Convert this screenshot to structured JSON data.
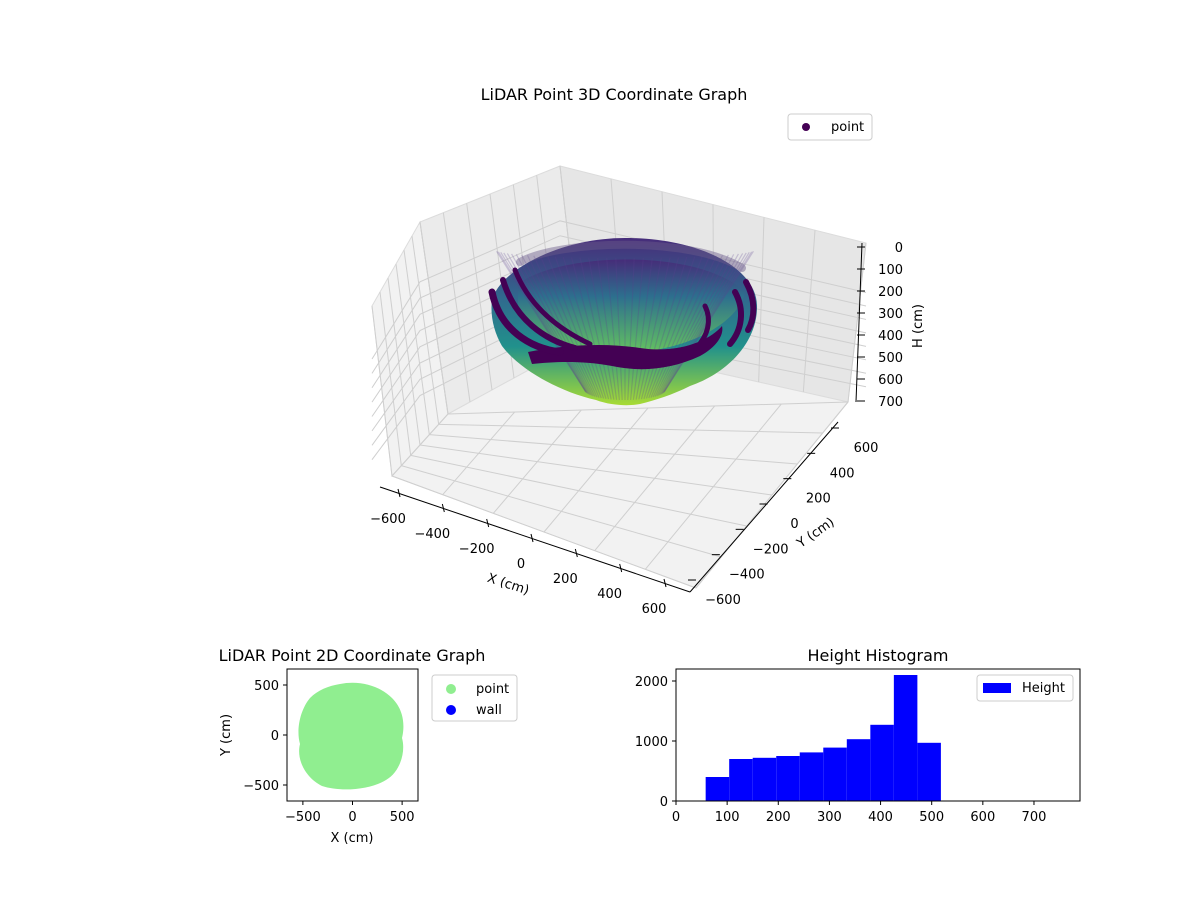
{
  "colors": {
    "viridis_dark": "#440154",
    "viridis_mid": "#21918c",
    "viridis_light": "#b5de2b",
    "point_2d": "#90ee90",
    "wall": "#0000ff",
    "hist_bar": "#0000ff"
  },
  "chart_data": [
    {
      "type": "scatter3d",
      "title": "LiDAR Point 3D Coordinate Graph",
      "xlabel": "X (cm)",
      "ylabel": "Y (cm)",
      "zlabel": "H (cm)",
      "x_ticks": [
        "−600",
        "−400",
        "−200",
        "0",
        "200",
        "400",
        "600"
      ],
      "y_ticks": [
        "−600",
        "−400",
        "−200",
        "0",
        "200",
        "400",
        "600"
      ],
      "z_ticks": [
        "0",
        "100",
        "200",
        "300",
        "400",
        "500",
        "600",
        "700"
      ],
      "xlim": [
        -650,
        650
      ],
      "ylim": [
        -650,
        650
      ],
      "zlim": [
        0,
        750
      ],
      "z_inverted": true,
      "series": [
        {
          "name": "point",
          "color": "#440154"
        }
      ],
      "shape": "bowl",
      "rim_radius": 500,
      "bottom_height": 520,
      "legend": "top-right",
      "grid": true
    },
    {
      "type": "scatter",
      "title": "LiDAR Point 2D Coordinate Graph",
      "xlabel": "X (cm)",
      "ylabel": "Y (cm)",
      "x_ticks": [
        "−500",
        "0",
        "500"
      ],
      "y_ticks": [
        "500",
        "0",
        "−500"
      ],
      "xlim": [
        -660,
        660
      ],
      "ylim": [
        -660,
        660
      ],
      "series": [
        {
          "name": "point",
          "color": "#90ee90",
          "region_radius": 500
        },
        {
          "name": "wall",
          "color": "#0000ff"
        }
      ],
      "legend": "outside-right",
      "grid": false
    },
    {
      "type": "bar",
      "title": "Height Histogram",
      "x_ticks": [
        "0",
        "100",
        "200",
        "300",
        "400",
        "500",
        "600",
        "700"
      ],
      "y_ticks": [
        "0",
        "1000",
        "2000"
      ],
      "xlim": [
        0,
        790
      ],
      "ylim": [
        0,
        2200
      ],
      "bins": [
        {
          "x0": 58,
          "x1": 104,
          "count": 400
        },
        {
          "x0": 104,
          "x1": 150,
          "count": 700
        },
        {
          "x0": 150,
          "x1": 196,
          "count": 720
        },
        {
          "x0": 196,
          "x1": 242,
          "count": 750
        },
        {
          "x0": 242,
          "x1": 288,
          "count": 810
        },
        {
          "x0": 288,
          "x1": 334,
          "count": 890
        },
        {
          "x0": 334,
          "x1": 380,
          "count": 1030
        },
        {
          "x0": 380,
          "x1": 426,
          "count": 1270
        },
        {
          "x0": 426,
          "x1": 472,
          "count": 2100
        },
        {
          "x0": 472,
          "x1": 518,
          "count": 970
        }
      ],
      "series": [
        {
          "name": "Height",
          "color": "#0000ff"
        }
      ],
      "legend": "top-right",
      "grid": false
    }
  ]
}
